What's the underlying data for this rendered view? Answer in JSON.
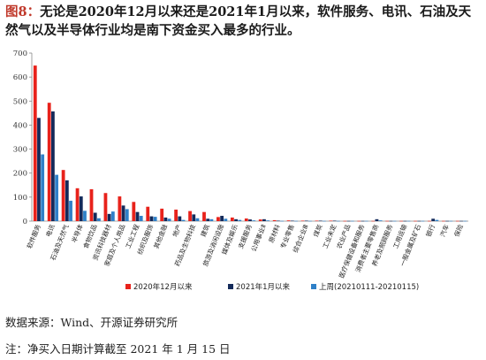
{
  "figure_label": "图8：",
  "title": "无论是2020年12月以来还是2021年1月以来，软件服务、电讯、石油及天然气以及半导体行业均是南下资金买入最多的行业。",
  "source": "数据来源：Wind、开源证券研究所",
  "note": "注：净买入日期计算截至 2021 年 1 月 15 日",
  "chart_data": {
    "type": "bar",
    "title": "",
    "xlabel": "",
    "ylabel": "",
    "ylim": [
      0,
      700
    ],
    "yticks": [
      0,
      100,
      200,
      300,
      400,
      500,
      600,
      700
    ],
    "grid": false,
    "legend_position": "bottom",
    "categories": [
      "软件服务",
      "电讯",
      "石油及天然气",
      "半导体",
      "食物饮品",
      "资讯科技器材",
      "家庭及个人用品",
      "工业工程",
      "纺织及服饰",
      "其他金融",
      "地产",
      "药品及生物科技",
      "建筑",
      "旅游及消闲设施",
      "媒体及娱乐",
      "支援服务",
      "公用事业Ⅱ",
      "原材料",
      "专业零售",
      "综合企业Ⅲ",
      "煤炭",
      "工业未定",
      "农业产品",
      "医疗保健设备和服务",
      "消费者主要零售商",
      "养老及照顾服务",
      "工用运输",
      "一般金属及矿石",
      "银行",
      "汽车",
      "保险"
    ],
    "series": [
      {
        "name": "2020年12月以来",
        "color": "#e8221b",
        "values": [
          648,
          493,
          213,
          137,
          133,
          117,
          103,
          80,
          60,
          52,
          48,
          42,
          38,
          17,
          15,
          11,
          7,
          4,
          3,
          2,
          2,
          2,
          1,
          1,
          1,
          1,
          1,
          1,
          1,
          1,
          1
        ]
      },
      {
        "name": "2021年1月以来",
        "color": "#142a5a",
        "values": [
          430,
          457,
          170,
          103,
          35,
          30,
          65,
          38,
          20,
          15,
          20,
          28,
          10,
          22,
          8,
          7,
          8,
          2,
          2,
          2,
          2,
          2,
          1,
          1,
          8,
          1,
          1,
          1,
          10,
          1,
          1
        ]
      },
      {
        "name": "上周(20210111-20210115)",
        "color": "#2f80c8",
        "values": [
          278,
          193,
          85,
          43,
          12,
          40,
          50,
          22,
          18,
          10,
          5,
          12,
          8,
          10,
          5,
          3,
          3,
          1,
          1,
          1,
          1,
          1,
          1,
          1,
          3,
          1,
          1,
          1,
          5,
          1,
          1
        ]
      }
    ]
  }
}
